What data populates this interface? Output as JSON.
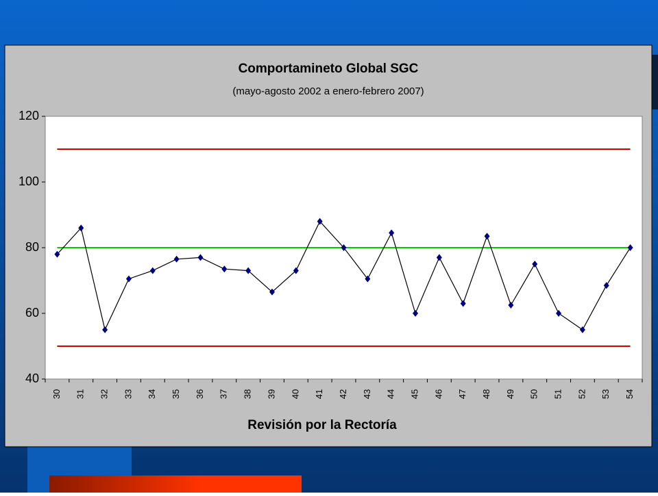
{
  "chart_data": {
    "type": "line",
    "title": "Comportamineto Global SGC",
    "subtitle": "(mayo-agosto 2002 a enero-febrero 2007)",
    "x_label": "Revisión por la Rectoría",
    "categories": [
      "30",
      "31",
      "32",
      "33",
      "34",
      "35",
      "36",
      "37",
      "38",
      "39",
      "40",
      "41",
      "42",
      "43",
      "44",
      "45",
      "46",
      "47",
      "48",
      "49",
      "50",
      "51",
      "52",
      "53",
      "54"
    ],
    "values": [
      78,
      86,
      55,
      70.5,
      73,
      76.5,
      77,
      73.5,
      73,
      66.5,
      73,
      88,
      80,
      70.5,
      84.5,
      60,
      77,
      63,
      83.5,
      62.5,
      75,
      60,
      55,
      68.5,
      80
    ],
    "line_color": "#000000",
    "marker_color": "#000080",
    "reference_lines": [
      {
        "value": 110,
        "color": "#cc0000"
      },
      {
        "value": 80,
        "color": "#00cc00"
      },
      {
        "value": 50,
        "color": "#cc0000"
      }
    ],
    "ylim": [
      40,
      120
    ],
    "yticks": [
      40,
      60,
      80,
      100,
      120
    ]
  }
}
